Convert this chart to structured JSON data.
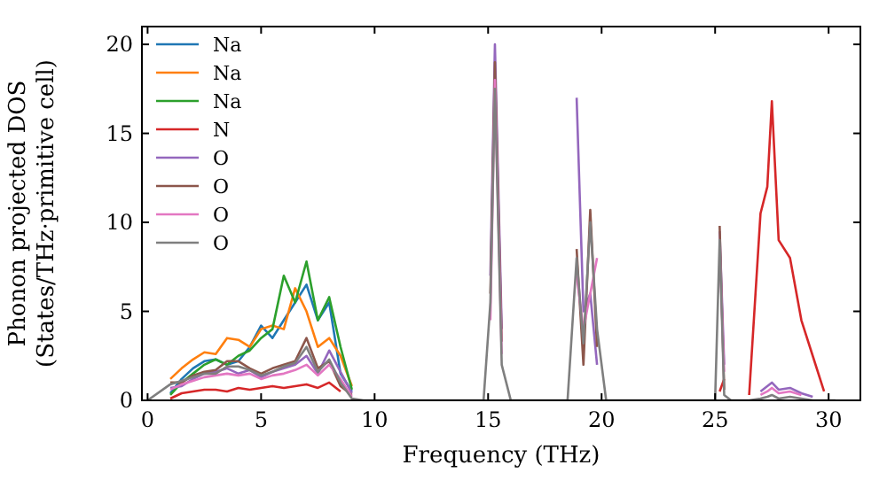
{
  "chart_data": {
    "type": "line",
    "xlabel": "Frequency (THz)",
    "ylabel": "Phonon projected DOS\n(States/THz·primitive cell)",
    "x": [
      0,
      1,
      1.5,
      2,
      2.5,
      3,
      3.5,
      4,
      4.5,
      5,
      5.5,
      6,
      6.5,
      7,
      7.5,
      8,
      8.5,
      9,
      9.5,
      10,
      14.8,
      15.1,
      15.3,
      15.6,
      16,
      18.5,
      18.9,
      19.2,
      19.5,
      19.8,
      20.2,
      25,
      25.2,
      25.4,
      25.7,
      26.5,
      27,
      27.3,
      27.5,
      27.8,
      28.3,
      28.8,
      29.3,
      29.8,
      30.3
    ],
    "xlim": [
      -0.25,
      31.4
    ],
    "ylim": [
      0,
      21
    ],
    "xticks": [
      0,
      5,
      10,
      15,
      20,
      25,
      30
    ],
    "yticks": [
      0,
      5,
      10,
      15,
      20
    ],
    "grid": false,
    "legend": "top left",
    "marker": "none",
    "line_style": "solid",
    "series": [
      {
        "name": "Na",
        "color": "#1f77b4",
        "values": [
          null,
          0.4,
          1.2,
          1.8,
          2.2,
          2.3,
          2.0,
          2.2,
          3.0,
          4.2,
          3.5,
          4.5,
          5.5,
          6.5,
          4.5,
          5.5,
          1.5,
          0.5,
          null,
          null,
          null,
          null,
          null,
          null,
          null,
          null,
          null,
          null,
          null,
          null,
          null,
          null,
          null,
          null,
          null,
          null,
          null,
          null,
          null,
          null,
          null,
          null,
          null,
          null,
          null
        ]
      },
      {
        "name": "Na",
        "color": "#ff7f0e",
        "values": [
          null,
          1.2,
          1.8,
          2.3,
          2.7,
          2.6,
          3.5,
          3.4,
          3.0,
          4.0,
          4.2,
          4.0,
          6.3,
          5.0,
          3.0,
          3.5,
          2.5,
          0.8,
          null,
          null,
          null,
          null,
          null,
          null,
          null,
          null,
          null,
          null,
          null,
          null,
          null,
          null,
          null,
          null,
          null,
          null,
          null,
          null,
          null,
          null,
          null,
          null,
          null,
          null,
          null
        ]
      },
      {
        "name": "Na",
        "color": "#2ca02c",
        "values": [
          null,
          0.3,
          1.0,
          1.5,
          2.0,
          2.3,
          2.0,
          2.5,
          2.8,
          3.5,
          4.0,
          7.0,
          5.5,
          7.8,
          4.5,
          5.8,
          3.0,
          0.6,
          null,
          null,
          null,
          null,
          null,
          null,
          null,
          null,
          null,
          null,
          null,
          null,
          null,
          null,
          null,
          null,
          null,
          null,
          null,
          null,
          null,
          null,
          null,
          null,
          null,
          null,
          null
        ]
      },
      {
        "name": "N",
        "color": "#d62728",
        "values": [
          null,
          0.1,
          0.4,
          0.5,
          0.6,
          0.6,
          0.5,
          0.7,
          0.6,
          0.7,
          0.8,
          0.7,
          0.8,
          0.9,
          0.7,
          1.0,
          0.5,
          null,
          null,
          null,
          null,
          null,
          null,
          null,
          null,
          null,
          null,
          null,
          null,
          null,
          null,
          null,
          0.5,
          1.2,
          null,
          0.3,
          10.5,
          12,
          16.8,
          9,
          8,
          4.5,
          2.5,
          0.5,
          null
        ]
      },
      {
        "name": "O",
        "color": "#9467bd",
        "values": [
          null,
          0.7,
          0.8,
          1.2,
          1.5,
          1.6,
          1.8,
          1.5,
          1.7,
          1.3,
          1.6,
          1.8,
          2.0,
          2.5,
          1.5,
          2.8,
          1.6,
          0.4,
          null,
          null,
          null,
          7,
          20,
          4,
          null,
          null,
          17,
          5,
          6,
          2,
          null,
          null,
          9.5,
          2.0,
          null,
          null,
          0.5,
          0.8,
          1.0,
          0.6,
          0.7,
          0.4,
          0.2,
          null,
          null
        ]
      },
      {
        "name": "O",
        "color": "#8c564b",
        "values": [
          null,
          1.0,
          1.0,
          1.4,
          1.6,
          1.7,
          2.2,
          2.2,
          1.8,
          1.5,
          1.8,
          2.0,
          2.2,
          3.5,
          1.8,
          2.2,
          0.8,
          0.3,
          null,
          null,
          null,
          6,
          19,
          3.3,
          null,
          null,
          8.5,
          2,
          10.7,
          3,
          null,
          null,
          9.8,
          0.6,
          null,
          null,
          null,
          null,
          null,
          null,
          null,
          null,
          null,
          null,
          null
        ]
      },
      {
        "name": "O",
        "color": "#e377c2",
        "values": [
          null,
          0.6,
          0.9,
          1.1,
          1.3,
          1.4,
          1.5,
          1.4,
          1.5,
          1.2,
          1.4,
          1.5,
          1.7,
          2.0,
          1.4,
          2.0,
          1.2,
          0.2,
          null,
          null,
          null,
          4.5,
          18,
          2.6,
          null,
          null,
          7,
          4,
          6,
          8,
          null,
          null,
          8.6,
          1.6,
          null,
          null,
          0.3,
          0.5,
          0.7,
          0.4,
          0.5,
          0.3,
          null,
          null,
          null
        ]
      },
      {
        "name": "O",
        "color": "#7f7f7f",
        "values": [
          0,
          0.9,
          1.1,
          1.3,
          1.5,
          1.5,
          1.9,
          1.9,
          1.7,
          1.4,
          1.6,
          1.9,
          2.1,
          3.0,
          1.6,
          2.3,
          1.0,
          0.1,
          0,
          0,
          0,
          5.5,
          17.5,
          2,
          0,
          0,
          8,
          3.2,
          10,
          4,
          0,
          0,
          9,
          0.3,
          0,
          0,
          0.1,
          0.2,
          0.3,
          0.1,
          0.2,
          0.1,
          0,
          0,
          0
        ]
      }
    ]
  }
}
